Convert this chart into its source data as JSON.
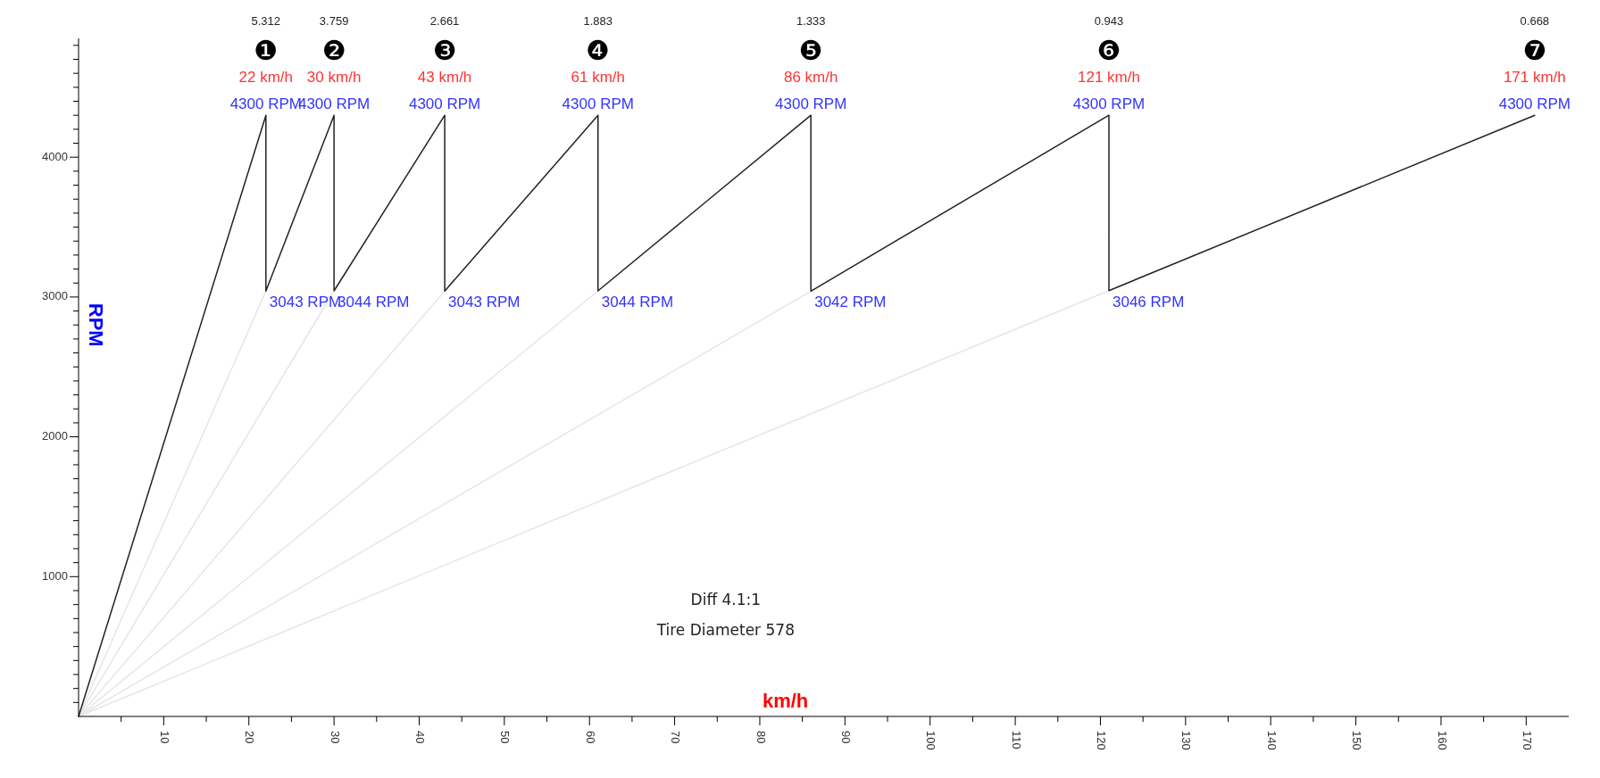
{
  "chart_data": {
    "type": "line",
    "xlabel": "km/h",
    "ylabel": "RPM",
    "xlim": [
      0,
      175
    ],
    "ylim": [
      0,
      4850
    ],
    "xticks": [
      {
        "value": 5,
        "label": null
      },
      10,
      {
        "value": 15,
        "label": null
      },
      20,
      {
        "value": 25,
        "label": null
      },
      30,
      {
        "value": 35,
        "label": null
      },
      40,
      {
        "value": 45,
        "label": null
      },
      50,
      {
        "value": 55,
        "label": null
      },
      60,
      {
        "value": 65,
        "label": null
      },
      70,
      {
        "value": 75,
        "label": null
      },
      80,
      {
        "value": 85,
        "label": null
      },
      90,
      {
        "value": 95,
        "label": null
      },
      100,
      {
        "value": 105,
        "label": null
      },
      110,
      {
        "value": 115,
        "label": null
      },
      120,
      {
        "value": 125,
        "label": null
      },
      130,
      {
        "value": 135,
        "label": null
      },
      140,
      {
        "value": 145,
        "label": null
      },
      150,
      {
        "value": 155,
        "label": null
      },
      160,
      {
        "value": 165,
        "label": null
      },
      170
    ],
    "yticks": [
      {
        "value": 100,
        "label": null
      },
      {
        "value": 200,
        "label": null
      },
      {
        "value": 300,
        "label": null
      },
      {
        "value": 400,
        "label": null
      },
      {
        "value": 500,
        "label": null
      },
      {
        "value": 600,
        "label": null
      },
      {
        "value": 700,
        "label": null
      },
      {
        "value": 800,
        "label": null
      },
      {
        "value": 900,
        "label": null
      },
      1000,
      {
        "value": 1100,
        "label": null
      },
      {
        "value": 1200,
        "label": null
      },
      {
        "value": 1300,
        "label": null
      },
      {
        "value": 1400,
        "label": null
      },
      {
        "value": 1500,
        "label": null
      },
      {
        "value": 1600,
        "label": null
      },
      {
        "value": 1700,
        "label": null
      },
      {
        "value": 1800,
        "label": null
      },
      {
        "value": 1900,
        "label": null
      },
      2000,
      {
        "value": 2100,
        "label": null
      },
      {
        "value": 2200,
        "label": null
      },
      {
        "value": 2300,
        "label": null
      },
      {
        "value": 2400,
        "label": null
      },
      {
        "value": 2500,
        "label": null
      },
      {
        "value": 2600,
        "label": null
      },
      {
        "value": 2700,
        "label": null
      },
      {
        "value": 2800,
        "label": null
      },
      {
        "value": 2900,
        "label": null
      },
      3000,
      {
        "value": 3100,
        "label": null
      },
      {
        "value": 3200,
        "label": null
      },
      {
        "value": 3300,
        "label": null
      },
      {
        "value": 3400,
        "label": null
      },
      {
        "value": 3500,
        "label": null
      },
      {
        "value": 3600,
        "label": null
      },
      {
        "value": 3700,
        "label": null
      },
      {
        "value": 3800,
        "label": null
      },
      {
        "value": 3900,
        "label": null
      },
      4000,
      {
        "value": 4100,
        "label": null
      },
      {
        "value": 4200,
        "label": null
      },
      {
        "value": 4300,
        "label": null
      },
      {
        "value": 4400,
        "label": null
      },
      {
        "value": 4500,
        "label": null
      },
      {
        "value": 4600,
        "label": null
      },
      {
        "value": 4700,
        "label": null
      },
      {
        "value": 4800,
        "label": null
      }
    ],
    "grid": false,
    "marker": "none",
    "line_style": "solid",
    "series": [
      {
        "color": "#e6e6e6",
        "x": [
          0,
          22
        ],
        "values": [
          0,
          3043
        ]
      },
      {
        "color": "#e6e6e6",
        "x": [
          0,
          30
        ],
        "values": [
          0,
          3044
        ]
      },
      {
        "color": "#e6e6e6",
        "x": [
          0,
          43
        ],
        "values": [
          0,
          3043
        ]
      },
      {
        "color": "#e6e6e6",
        "x": [
          0,
          61
        ],
        "values": [
          0,
          3044
        ]
      },
      {
        "color": "#e6e6e6",
        "x": [
          0,
          86
        ],
        "values": [
          0,
          3042
        ]
      },
      {
        "color": "#e6e6e6",
        "x": [
          0,
          121
        ],
        "values": [
          0,
          3046
        ]
      },
      {
        "color": "#222222",
        "x": [
          0,
          22,
          22,
          30,
          30,
          43,
          43,
          61,
          61,
          86,
          86,
          121,
          121,
          171
        ],
        "values": [
          0,
          4300,
          3043,
          4300,
          3044,
          4300,
          3043,
          4300,
          3044,
          4300,
          3042,
          4300,
          3046,
          4300
        ]
      }
    ],
    "annotations": [
      {
        "text": "4300 RPM",
        "x": 22,
        "y": 4300
      },
      {
        "text": "22 km/h",
        "x": 22,
        "y": 4300
      },
      {
        "text": "❶",
        "x": 22,
        "y": 4300
      },
      {
        "text": "4300 RPM",
        "x": 30,
        "y": 4300
      },
      {
        "text": "30 km/h",
        "x": 30,
        "y": 4300
      },
      {
        "text": "❷",
        "x": 30,
        "y": 4300
      },
      {
        "text": "4300 RPM",
        "x": 43,
        "y": 4300
      },
      {
        "text": "43 km/h",
        "x": 43,
        "y": 4300
      },
      {
        "text": "❸",
        "x": 43,
        "y": 4300
      },
      {
        "text": "4300 RPM",
        "x": 61,
        "y": 4300
      },
      {
        "text": "61 km/h",
        "x": 61,
        "y": 4300
      },
      {
        "text": "❹",
        "x": 61,
        "y": 4300
      },
      {
        "text": "4300 RPM",
        "x": 86,
        "y": 4300
      },
      {
        "text": "86 km/h",
        "x": 86,
        "y": 4300
      },
      {
        "text": "❺",
        "x": 86,
        "y": 4300
      },
      {
        "text": "4300 RPM",
        "x": 121,
        "y": 4300
      },
      {
        "text": "121 km/h",
        "x": 121,
        "y": 4300
      },
      {
        "text": "❻",
        "x": 121,
        "y": 4300
      },
      {
        "text": "4300 RPM",
        "x": 171,
        "y": 4300
      },
      {
        "text": "171 km/h",
        "x": 171,
        "y": 4300
      },
      {
        "text": "❼",
        "x": 171,
        "y": 4300
      },
      {
        "text": "3043 RPM",
        "x": 22,
        "y": 3043
      },
      {
        "text": "3044 RPM",
        "x": 30,
        "y": 3044
      },
      {
        "text": "3043 RPM",
        "x": 43,
        "y": 3043
      },
      {
        "text": "3044 RPM",
        "x": 61,
        "y": 3044
      },
      {
        "text": "3042 RPM",
        "x": 86,
        "y": 3042
      },
      {
        "text": "3046 RPM",
        "x": 121,
        "y": 3046
      },
      "5.312",
      "3.759",
      "2.661",
      "1.883",
      "1.333",
      "0.943",
      "0.668",
      "Diff 4.1:1",
      "Tire Diameter 578"
    ]
  }
}
